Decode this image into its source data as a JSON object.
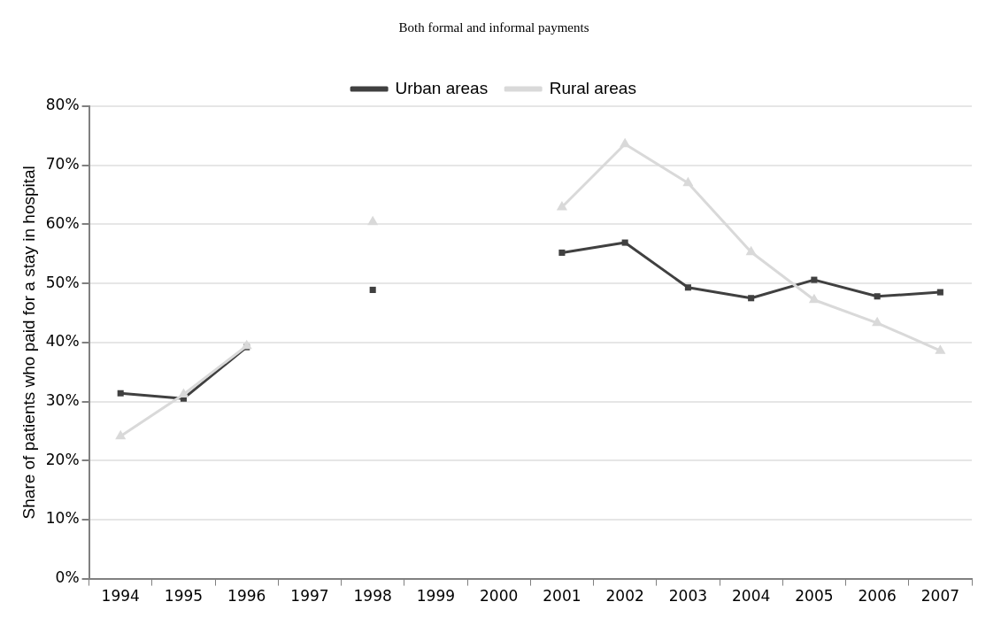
{
  "chart_data": {
    "type": "line",
    "title": "Both formal and informal payments",
    "ylabel": "Share of patients who paid for a stay in hospital",
    "categories": [
      "1994",
      "1995",
      "1996",
      "1997",
      "1998",
      "1999",
      "2000",
      "2001",
      "2002",
      "2003",
      "2004",
      "2005",
      "2006",
      "2007"
    ],
    "series": [
      {
        "name": "Urban areas",
        "color": "#404040",
        "marker": "square",
        "values": [
          31.4,
          30.5,
          39.2,
          null,
          48.9,
          null,
          null,
          55.2,
          56.9,
          49.3,
          47.5,
          50.6,
          47.8,
          48.5
        ]
      },
      {
        "name": "Rural areas",
        "color": "#d9d9d9",
        "marker": "triangle",
        "values": [
          24.1,
          31.2,
          39.4,
          null,
          60.4,
          null,
          null,
          62.9,
          73.6,
          67.0,
          55.3,
          47.2,
          43.3,
          38.6
        ]
      }
    ],
    "ylim": [
      0,
      80
    ],
    "yticks": [
      {
        "value": 0,
        "label": "0%"
      },
      {
        "value": 10,
        "label": "10%"
      },
      {
        "value": 20,
        "label": "20%"
      },
      {
        "value": 30,
        "label": "30%"
      },
      {
        "value": 40,
        "label": "40%"
      },
      {
        "value": 50,
        "label": "50%"
      },
      {
        "value": 60,
        "label": "60%"
      },
      {
        "value": 70,
        "label": "70%"
      },
      {
        "value": 80,
        "label": "80%"
      }
    ],
    "grid": "y",
    "legend": "top",
    "line_style": "solid"
  }
}
